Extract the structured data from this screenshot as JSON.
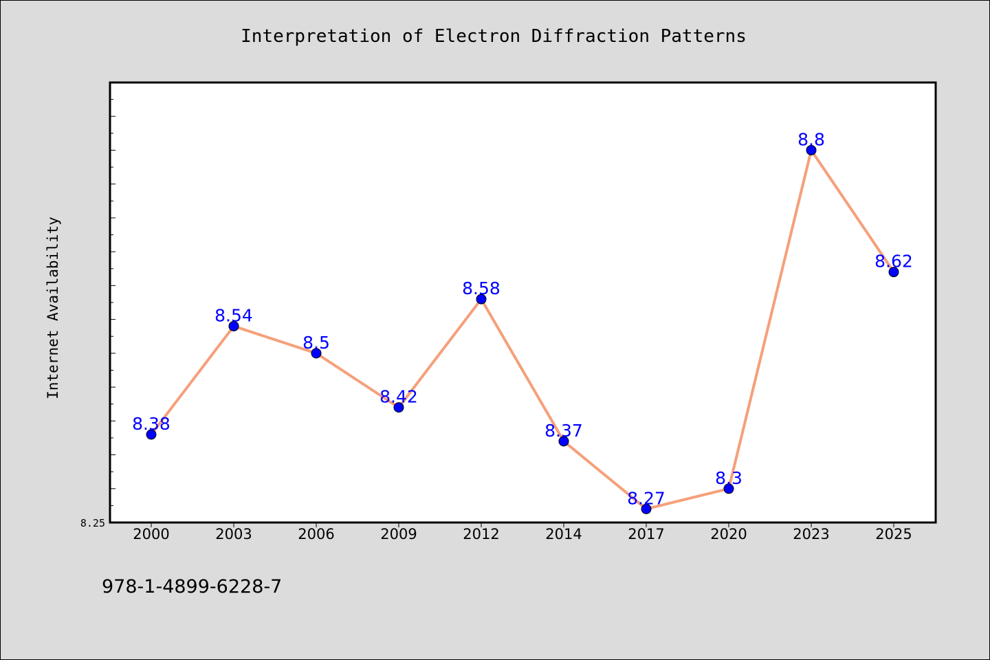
{
  "chart_data": {
    "type": "line",
    "title": "Interpretation of Electron Diffraction Patterns",
    "xlabel": "",
    "ylabel": "Internet Availability",
    "categories": [
      "2000",
      "2003",
      "2006",
      "2009",
      "2012",
      "2014",
      "2017",
      "2020",
      "2023",
      "2025"
    ],
    "series": [
      {
        "values": [
          8.38,
          8.54,
          8.5,
          8.42,
          8.58,
          8.37,
          8.27,
          8.3,
          8.8,
          8.62
        ],
        "line_color": "#f5a07a",
        "marker_color": "#0000ff"
      }
    ],
    "data_labels": [
      "8.38",
      "8.54",
      "8.5",
      "8.42",
      "8.58",
      "8.37",
      "8.27",
      "8.3",
      "8.8",
      "8.62"
    ],
    "ylim": [
      8.25,
      8.9
    ],
    "yticks_labeled": [
      "8.25"
    ],
    "grid": false,
    "legend": "none"
  },
  "footer": {
    "isbn": "978-1-4899-6228-7"
  }
}
